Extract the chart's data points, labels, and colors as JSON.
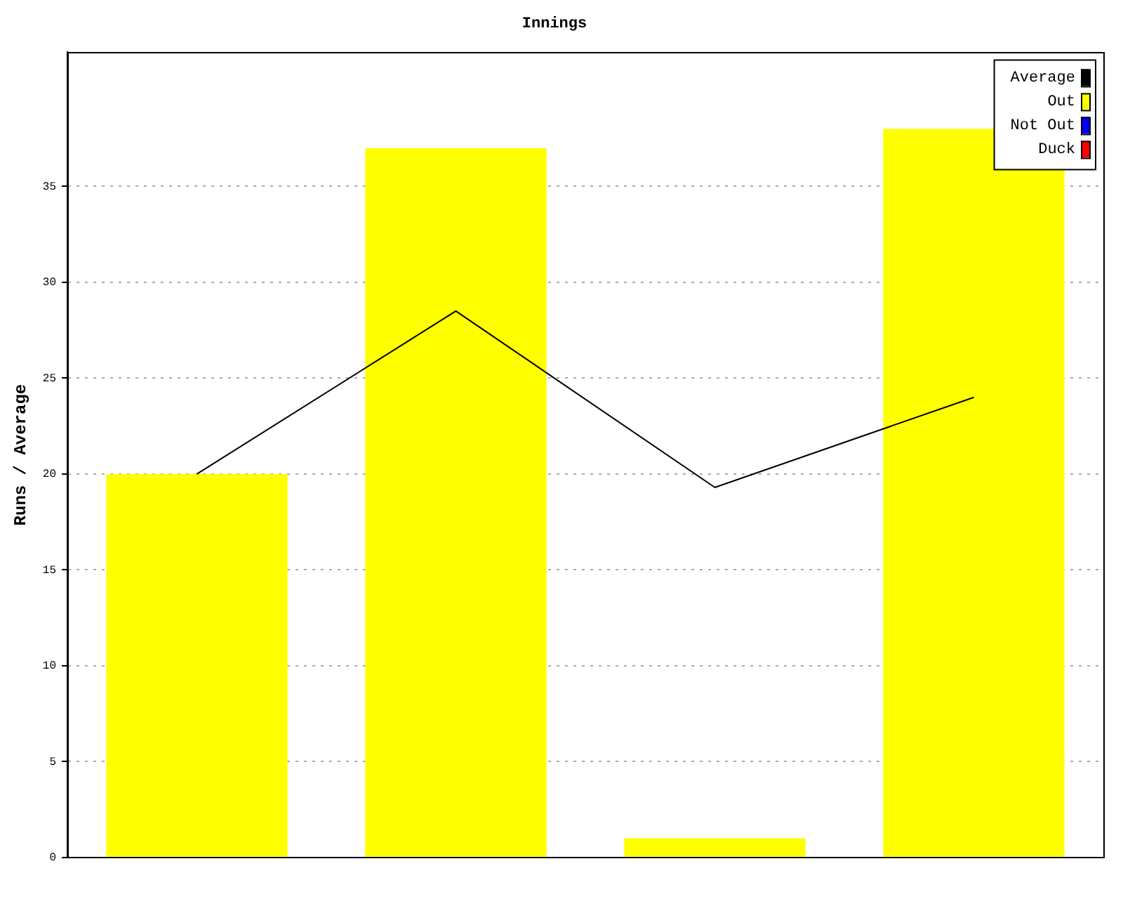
{
  "chart_data": {
    "type": "bar",
    "title": "Innings",
    "ylabel": "Runs / Average",
    "categories": [
      null,
      null,
      null,
      null
    ],
    "series": [
      {
        "name": "Average",
        "type": "line",
        "color": "#000000",
        "values": [
          20,
          28.5,
          19.3,
          24
        ]
      },
      {
        "name": "Out",
        "color": "#ffff00",
        "values": [
          20,
          37,
          1,
          38
        ]
      },
      {
        "name": "Not Out",
        "color": "#0000ff",
        "values": [
          null,
          null,
          null,
          null
        ]
      },
      {
        "name": "Duck",
        "color": "#ff0000",
        "values": [
          null,
          null,
          null,
          null
        ]
      }
    ],
    "ylim": [
      0,
      42
    ],
    "yticks": [
      0,
      5,
      10,
      15,
      20,
      25,
      30,
      35
    ],
    "grid": "y",
    "legend": "top right",
    "marker": "none",
    "line_style": "solid"
  }
}
